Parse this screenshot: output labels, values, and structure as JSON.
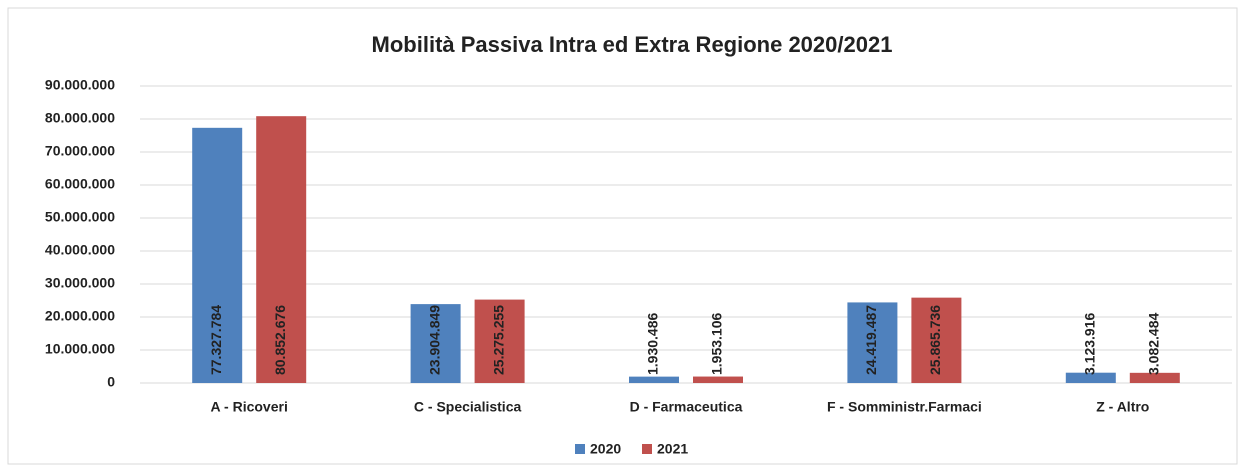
{
  "chart_data": {
    "type": "bar",
    "title": "Mobilità Passiva Intra ed Extra Regione 2020/2021",
    "categories": [
      "A - Ricoveri",
      "C - Specialistica",
      "D - Farmaceutica",
      "F - Somministr.Farmaci",
      "Z - Altro"
    ],
    "series": [
      {
        "name": "2020",
        "color": "#4f81bd",
        "values": [
          77327784,
          23904849,
          1930486,
          24419487,
          3123916
        ],
        "value_labels": [
          "77.327.784",
          "23.904.849",
          "1.930.486",
          "24.419.487",
          "3.123.916"
        ]
      },
      {
        "name": "2021",
        "color": "#c0504d",
        "values": [
          80852676,
          25275255,
          1953106,
          25865736,
          3082484
        ],
        "value_labels": [
          "80.852.676",
          "25.275.255",
          "1.953.106",
          "25.865.736",
          "3.082.484"
        ]
      }
    ],
    "ylim": [
      0,
      90000000
    ],
    "yticks": [
      0,
      {
        "value": 10000000,
        "label": "10.000.000"
      },
      {
        "value": 20000000,
        "label": "20.000.000"
      },
      {
        "value": 30000000,
        "label": "30.000.000"
      },
      {
        "value": 40000000,
        "label": "40.000.000"
      },
      {
        "value": 50000000,
        "label": "50.000.000"
      },
      {
        "value": 60000000,
        "label": "60.000.000"
      },
      {
        "value": 70000000,
        "label": "70.000.000"
      },
      {
        "value": 80000000,
        "label": "80.000.000"
      },
      {
        "value": 90000000,
        "label": "90.000.000"
      }
    ],
    "grid": true,
    "legend": "bottom"
  }
}
